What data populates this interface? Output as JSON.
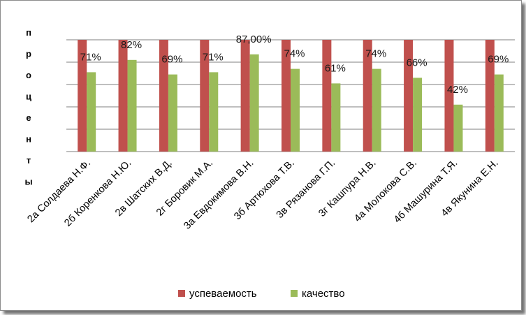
{
  "chart_data": {
    "type": "bar",
    "title": "",
    "ylabel": "проценты",
    "xlabel": "",
    "ylim": [
      0,
      1
    ],
    "grid": true,
    "legend_position": "bottom",
    "categories": [
      "2а Солдаева Н.Ф.",
      "2б Коренкова Н.Ю.",
      "2в Шатских В.Д.",
      "2г Боровик М.А.",
      "3а Евдокимова В.Н.",
      "3б Артюхова Т.В.",
      "3в Рязанова Г.П.",
      "3г Кашпура Н.В.",
      "4а Молокова С.В.",
      "4б Машурина Т.Я.",
      "4в Якунина Е.Н."
    ],
    "series": [
      {
        "name": "успеваемость",
        "color": "#C0504D",
        "values": [
          1,
          1,
          1,
          1,
          1,
          1,
          1,
          1,
          1,
          1,
          1
        ]
      },
      {
        "name": "качество",
        "color": "#9BBB59",
        "values": [
          0.71,
          0.82,
          0.69,
          0.71,
          0.87,
          0.74,
          0.61,
          0.74,
          0.66,
          0.42,
          0.69
        ],
        "labels": [
          "71%",
          "82%",
          "69%",
          "71%",
          "87,00%",
          "74%",
          "61%",
          "74%",
          "66%",
          "42%",
          "69%"
        ]
      }
    ]
  }
}
